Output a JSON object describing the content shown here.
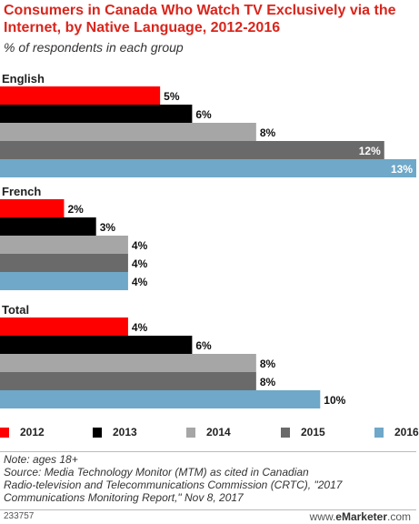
{
  "title": "Consumers in Canada Who Watch TV Exclusively via the Internet, by Native Language, 2012-2016",
  "subtitle": "% of respondents in each group",
  "chart_data": {
    "type": "bar",
    "orientation": "horizontal",
    "groups": [
      "English",
      "French",
      "Total"
    ],
    "series": [
      {
        "name": "2012",
        "color": "#ff0000",
        "values": [
          5,
          2,
          4
        ],
        "labels": [
          "5%",
          "2%",
          "4%"
        ]
      },
      {
        "name": "2013",
        "color": "#000000",
        "values": [
          6,
          3,
          6
        ],
        "labels": [
          "6%",
          "3%",
          "6%"
        ]
      },
      {
        "name": "2014",
        "color": "#a6a6a6",
        "values": [
          8,
          4,
          8
        ],
        "labels": [
          "8%",
          "4%",
          "8%"
        ]
      },
      {
        "name": "2015",
        "color": "#6a6a6a",
        "values": [
          12,
          4,
          8
        ],
        "labels": [
          "12%",
          "4%",
          "8%"
        ]
      },
      {
        "name": "2016",
        "color": "#6fa8c8",
        "values": [
          13,
          4,
          10
        ],
        "labels": [
          "13%",
          "4%",
          "10%"
        ]
      }
    ],
    "xlim": [
      0,
      13
    ],
    "unit": "%",
    "grid": false,
    "legend_position": "bottom"
  },
  "notes": [
    "Note: ages 18+",
    "Source: Media Technology Monitor (MTM) as cited in Canadian",
    "Radio-television and Telecommunications Commission (CRTC), \"2017",
    "Communications Monitoring Report,\" Nov 8, 2017"
  ],
  "footer": {
    "chart_id": "233757",
    "brand_prefix": "www.",
    "brand_name": "eMarketer",
    "brand_suffix": ".com"
  }
}
